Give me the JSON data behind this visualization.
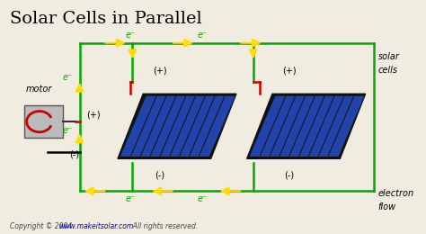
{
  "title": "Solar Cells in Parallel",
  "bg_color": "#f0ede0",
  "title_fontsize": 14,
  "copyright_text": "Copyright © 2004",
  "website_text": "www.makeitsolar.com",
  "rights_text": "  All rights reserved.",
  "green_color": "#00aa00",
  "red_color": "#cc0000",
  "yellow_color": "#ffdd00",
  "black_color": "#000000",
  "blue_panel_color": "#2244aa",
  "gray_motor_color": "#bbbbbb"
}
